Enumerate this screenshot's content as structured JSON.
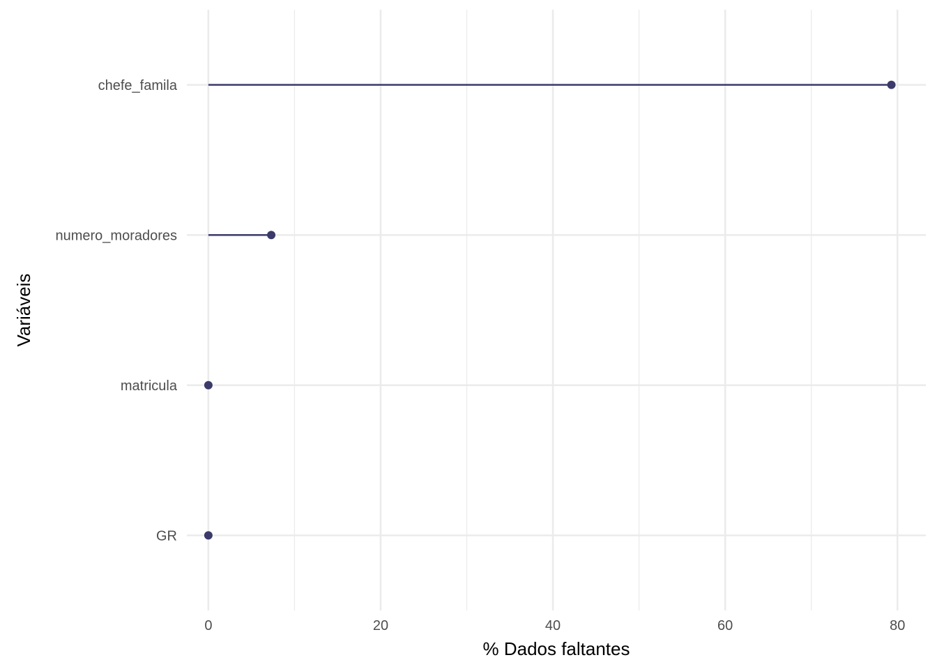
{
  "chart_data": {
    "type": "lollipop",
    "xlabel": "% Dados faltantes",
    "ylabel": "Variáveis",
    "categories": [
      "chefe_famila",
      "numero_moradores",
      "matricula",
      "GR"
    ],
    "values": [
      79.3,
      7.3,
      0,
      0
    ],
    "xlim": [
      -2.5,
      83.3
    ],
    "xticks": [
      0,
      20,
      40,
      60,
      80
    ],
    "grid": true,
    "colors": {
      "mark": "#3b3a6b",
      "grid": "#ebebeb",
      "tick_text": "#4d4d4d"
    }
  }
}
